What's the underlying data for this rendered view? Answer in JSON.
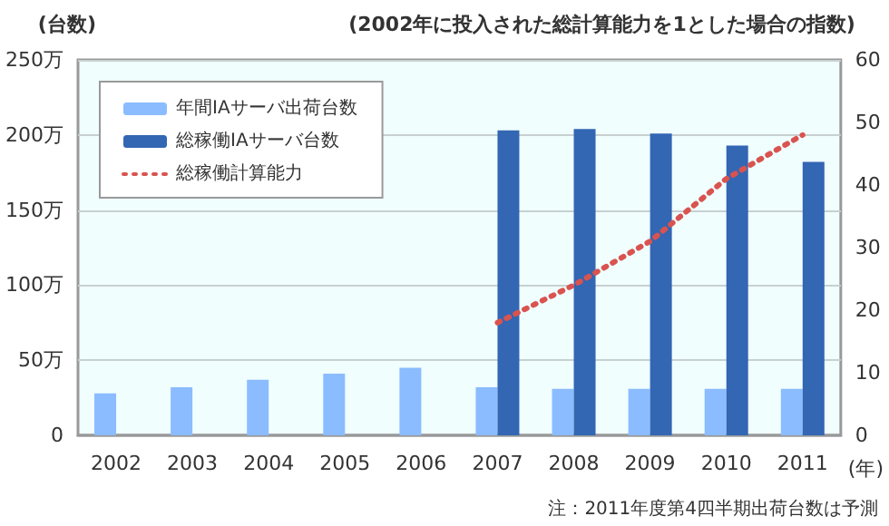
{
  "chart_data": {
    "type": "bar",
    "ylabel": "(台数)",
    "y2label": "(2002年に投入された総計算能力を1とした場合の指数)",
    "xlabel": "(年)",
    "annotations": [
      "注：2011年度第4四半期出荷台数は予測"
    ],
    "categories": [
      "2002",
      "2003",
      "2004",
      "2005",
      "2006",
      "2007",
      "2008",
      "2009",
      "2010",
      "2011"
    ],
    "series": [
      {
        "name": "年間IAサーバ出荷台数",
        "color": "#8bbcff",
        "values": [
          28,
          32,
          37,
          41,
          45,
          32,
          31,
          31,
          31,
          31
        ]
      },
      {
        "name": "総稼働IAサーバ台数",
        "color": "#3366b3",
        "values": [
          null,
          null,
          null,
          null,
          null,
          203,
          204,
          201,
          193,
          182
        ]
      },
      {
        "name": "総稼働計算能力",
        "type": "line",
        "axis": "y2",
        "color": "#d9534f",
        "line_style": "dotted",
        "marker": "none",
        "values": [
          null,
          null,
          null,
          null,
          null,
          18,
          24,
          31,
          41,
          48
        ]
      }
    ],
    "ylim": [
      0,
      250
    ],
    "yticks": [
      0,
      {
        "value": 50,
        "label": "50万"
      },
      {
        "value": 100,
        "label": "100万"
      },
      {
        "value": 150,
        "label": "150万"
      },
      {
        "value": 200,
        "label": "200万"
      },
      {
        "value": 250,
        "label": "250万"
      }
    ],
    "y2lim": [
      0,
      60
    ],
    "y2ticks": [
      0,
      10,
      20,
      30,
      40,
      50,
      60
    ],
    "grid": "y",
    "legend": "top left"
  }
}
